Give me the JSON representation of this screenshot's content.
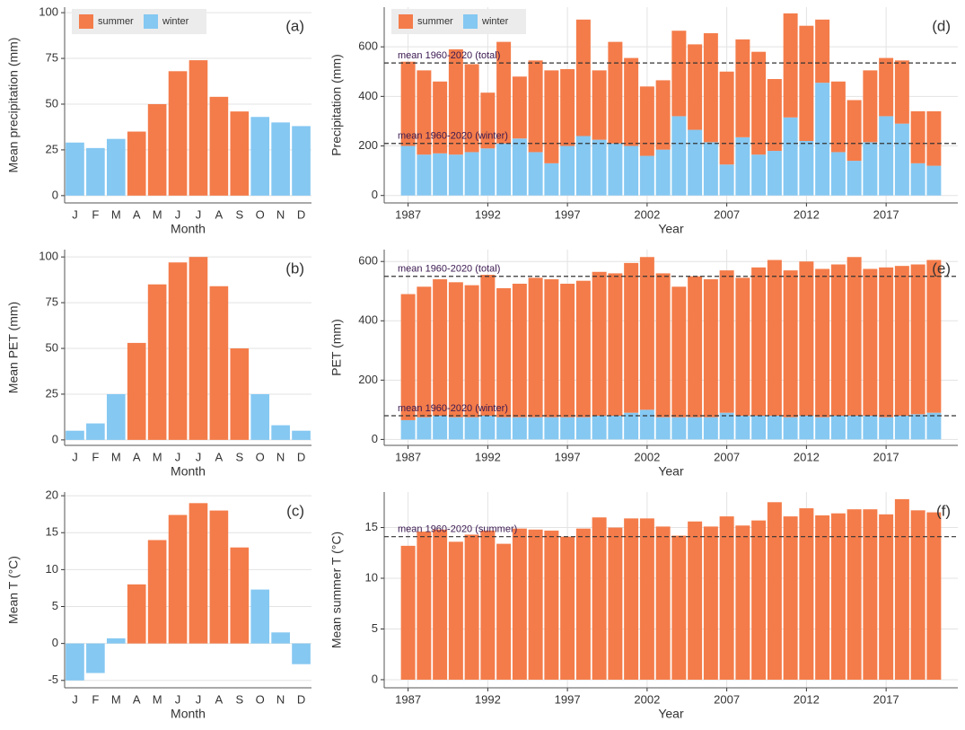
{
  "chart_data": [
    {
      "type": "bar",
      "annotation": "(a)",
      "xlabel": "Month",
      "ylabel": "Mean precipitation (mm)",
      "categories": [
        "J",
        "F",
        "M",
        "A",
        "M",
        "J",
        "J",
        "A",
        "S",
        "O",
        "N",
        "D"
      ],
      "series": [
        {
          "name": "summer",
          "color": "#f47c4a",
          "values": [
            null,
            null,
            null,
            35,
            50,
            68,
            74,
            54,
            46,
            null,
            null,
            null
          ]
        },
        {
          "name": "winter",
          "color": "#85c8f2",
          "values": [
            29,
            26,
            31,
            null,
            null,
            null,
            null,
            null,
            null,
            43,
            40,
            38
          ]
        }
      ],
      "ylim": [
        -4,
        103
      ],
      "yticks": [
        0,
        25,
        50,
        75,
        100
      ],
      "grid": true,
      "legend": "top-left"
    },
    {
      "type": "bar",
      "annotation": "(b)",
      "xlabel": "Month",
      "ylabel": "Mean PET (mm)",
      "categories": [
        "J",
        "F",
        "M",
        "A",
        "M",
        "J",
        "J",
        "A",
        "S",
        "O",
        "N",
        "D"
      ],
      "series": [
        {
          "name": "summer",
          "color": "#f47c4a",
          "values": [
            null,
            null,
            null,
            53,
            85,
            97,
            100,
            84,
            50,
            null,
            null,
            null
          ]
        },
        {
          "name": "winter",
          "color": "#85c8f2",
          "values": [
            5,
            9,
            25,
            null,
            null,
            null,
            null,
            null,
            null,
            25,
            8,
            5
          ]
        }
      ],
      "ylim": [
        -3,
        104
      ],
      "yticks": [
        0,
        25,
        50,
        75,
        100
      ],
      "grid": true
    },
    {
      "type": "bar",
      "annotation": "(c)",
      "xlabel": "Month",
      "ylabel": "Mean T (°C)",
      "categories": [
        "J",
        "F",
        "M",
        "A",
        "M",
        "J",
        "J",
        "A",
        "S",
        "O",
        "N",
        "D"
      ],
      "series": [
        {
          "name": "summer",
          "color": "#f47c4a",
          "values": [
            null,
            null,
            null,
            8,
            14,
            17.4,
            19,
            18,
            13,
            null,
            null,
            null
          ]
        },
        {
          "name": "winter",
          "color": "#85c8f2",
          "values": [
            -5,
            -4,
            0.7,
            null,
            null,
            null,
            null,
            null,
            null,
            7.3,
            1.5,
            -2.8
          ]
        }
      ],
      "ylim": [
        -6,
        20.5
      ],
      "yticks": [
        -5,
        0,
        5,
        10,
        15,
        20
      ],
      "grid": true
    },
    {
      "type": "stacked-bar",
      "annotation": "(d)",
      "xlabel": "Year",
      "ylabel": "Precipitation (mm)",
      "x": [
        1987,
        1988,
        1989,
        1990,
        1991,
        1992,
        1993,
        1994,
        1995,
        1996,
        1997,
        1998,
        1999,
        2000,
        2001,
        2002,
        2003,
        2004,
        2005,
        2006,
        2007,
        2008,
        2009,
        2010,
        2011,
        2012,
        2013,
        2014,
        2015,
        2016,
        2017,
        2018,
        2019,
        2020
      ],
      "series": [
        {
          "name": "summer",
          "color": "#f47c4a",
          "values": [
            340,
            340,
            290,
            425,
            355,
            225,
            410,
            250,
            370,
            375,
            310,
            470,
            280,
            410,
            355,
            280,
            280,
            345,
            345,
            440,
            375,
            395,
            415,
            290,
            420,
            465,
            255,
            285,
            245,
            290,
            235,
            255,
            210,
            220
          ]
        },
        {
          "name": "winter",
          "color": "#85c8f2",
          "values": [
            200,
            165,
            170,
            165,
            175,
            190,
            210,
            230,
            175,
            130,
            200,
            240,
            225,
            210,
            200,
            160,
            185,
            320,
            265,
            215,
            125,
            235,
            165,
            180,
            315,
            220,
            455,
            175,
            140,
            215,
            320,
            290,
            130,
            120
          ]
        }
      ],
      "hlines": [
        {
          "value": 535,
          "label": "mean 1960-2020 (total)"
        },
        {
          "value": 210,
          "label": "mean 1960-2020 (winter)"
        }
      ],
      "xlim": [
        1985.5,
        2021.5
      ],
      "xticks": [
        1987,
        1992,
        1997,
        2002,
        2007,
        2012,
        2017
      ],
      "ylim": [
        -30,
        760
      ],
      "yticks": [
        0,
        200,
        400,
        600
      ],
      "grid": true,
      "legend": "top-left"
    },
    {
      "type": "stacked-bar",
      "annotation": "(e)",
      "xlabel": "Year",
      "ylabel": "PET (mm)",
      "x": [
        1987,
        1988,
        1989,
        1990,
        1991,
        1992,
        1993,
        1994,
        1995,
        1996,
        1997,
        1998,
        1999,
        2000,
        2001,
        2002,
        2003,
        2004,
        2005,
        2006,
        2007,
        2008,
        2009,
        2010,
        2011,
        2012,
        2013,
        2014,
        2015,
        2016,
        2017,
        2018,
        2019,
        2020
      ],
      "series": [
        {
          "name": "summer",
          "color": "#f47c4a",
          "values": [
            425,
            440,
            460,
            455,
            445,
            475,
            435,
            450,
            470,
            465,
            450,
            460,
            485,
            480,
            505,
            515,
            485,
            440,
            475,
            465,
            480,
            465,
            500,
            525,
            495,
            520,
            500,
            510,
            535,
            495,
            505,
            505,
            505,
            515
          ]
        },
        {
          "name": "winter",
          "color": "#85c8f2",
          "values": [
            65,
            75,
            80,
            75,
            75,
            80,
            75,
            75,
            75,
            75,
            75,
            75,
            80,
            80,
            90,
            100,
            75,
            75,
            75,
            75,
            90,
            80,
            80,
            80,
            75,
            80,
            75,
            80,
            80,
            80,
            75,
            80,
            85,
            90
          ]
        }
      ],
      "hlines": [
        {
          "value": 550,
          "label": "mean 1960-2020 (total)"
        },
        {
          "value": 80,
          "label": "mean 1960-2020 (winter)"
        }
      ],
      "xlim": [
        1985.5,
        2021.5
      ],
      "xticks": [
        1987,
        1992,
        1997,
        2002,
        2007,
        2012,
        2017
      ],
      "ylim": [
        -20,
        640
      ],
      "yticks": [
        0,
        200,
        400,
        600
      ],
      "grid": true
    },
    {
      "type": "bar",
      "annotation": "(f)",
      "xlabel": "Year",
      "ylabel": "Mean summer T (°C)",
      "x": [
        1987,
        1988,
        1989,
        1990,
        1991,
        1992,
        1993,
        1994,
        1995,
        1996,
        1997,
        1998,
        1999,
        2000,
        2001,
        2002,
        2003,
        2004,
        2005,
        2006,
        2007,
        2008,
        2009,
        2010,
        2011,
        2012,
        2013,
        2014,
        2015,
        2016,
        2017,
        2018,
        2019,
        2020
      ],
      "series": [
        {
          "name": "summer",
          "color": "#f47c4a",
          "values": [
            13.2,
            14.6,
            14.8,
            13.6,
            14.3,
            14.7,
            13.4,
            14.9,
            14.8,
            14.7,
            14.1,
            14.9,
            16.0,
            15.0,
            15.9,
            15.9,
            15.1,
            14.2,
            15.6,
            15.1,
            16.1,
            15.2,
            15.7,
            17.5,
            16.1,
            16.9,
            16.2,
            16.4,
            16.8,
            16.8,
            16.3,
            17.8,
            16.7,
            16.5
          ]
        }
      ],
      "hlines": [
        {
          "value": 14.1,
          "label": "mean 1960-2020 (summer)"
        }
      ],
      "xlim": [
        1985.5,
        2021.5
      ],
      "xticks": [
        1987,
        1992,
        1997,
        2002,
        2007,
        2012,
        2017
      ],
      "ylim": [
        -0.8,
        18.5
      ],
      "yticks": [
        0,
        5,
        10,
        15
      ],
      "grid": true
    }
  ]
}
